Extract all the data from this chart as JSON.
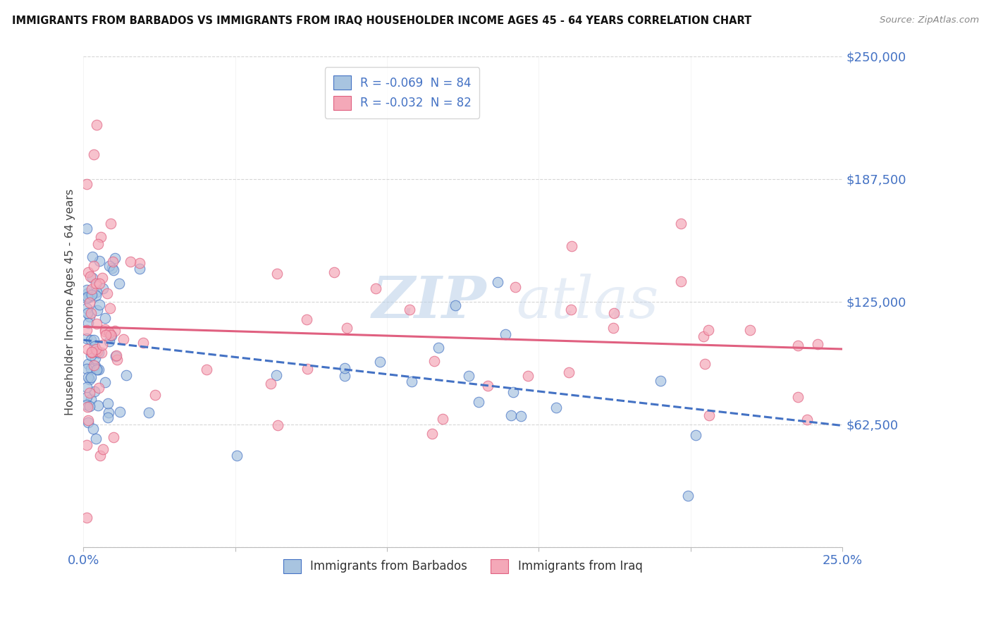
{
  "title": "IMMIGRANTS FROM BARBADOS VS IMMIGRANTS FROM IRAQ HOUSEHOLDER INCOME AGES 45 - 64 YEARS CORRELATION CHART",
  "source": "Source: ZipAtlas.com",
  "ylabel": "Householder Income Ages 45 - 64 years",
  "xlim": [
    0.0,
    0.25
  ],
  "ylim": [
    0,
    250000
  ],
  "yticks": [
    0,
    62500,
    125000,
    187500,
    250000
  ],
  "xticks": [
    0.0,
    0.05,
    0.1,
    0.15,
    0.2,
    0.25
  ],
  "barbados_color": "#a8c4e0",
  "iraq_color": "#f4a8b8",
  "barbados_line_color": "#4472c4",
  "iraq_line_color": "#e06080",
  "tick_color": "#4472c4",
  "legend_barbados_label": "R = -0.069  N = 84",
  "legend_iraq_label": "R = -0.032  N = 82",
  "legend_bottom_barbados": "Immigrants from Barbados",
  "legend_bottom_iraq": "Immigrants from Iraq",
  "watermark": "ZIPatlas",
  "background_color": "#ffffff",
  "barbados_intercept": 110000,
  "barbados_slope": -200000,
  "iraq_intercept": 103000,
  "iraq_slope": -5000
}
